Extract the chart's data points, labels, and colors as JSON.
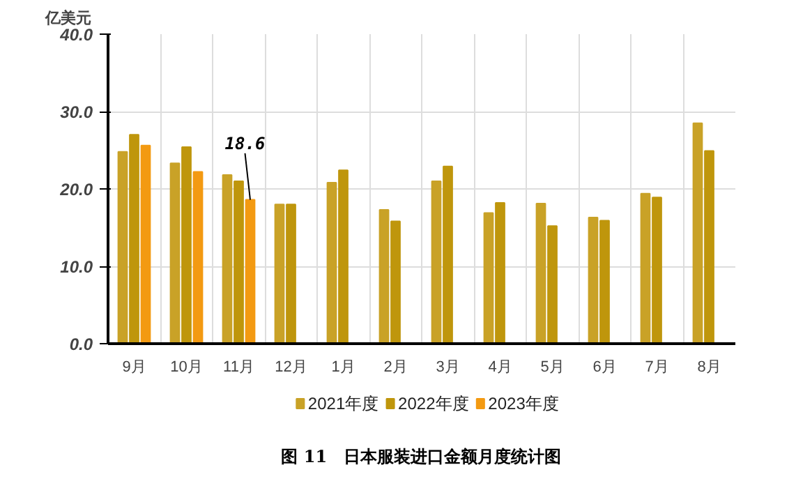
{
  "chart_data": {
    "type": "bar",
    "title": "图 11　日本服装进口金额月度统计图",
    "ylabel": "亿美元",
    "categories": [
      "9月",
      "10月",
      "11月",
      "12月",
      "1月",
      "2月",
      "3月",
      "4月",
      "5月",
      "6月",
      "7月",
      "8月"
    ],
    "series": [
      {
        "name": "2021年度",
        "color": "#c9a227",
        "values": [
          24.8,
          23.3,
          21.8,
          18.0,
          20.8,
          17.3,
          21.0,
          16.9,
          18.1,
          16.3,
          19.4,
          28.5
        ]
      },
      {
        "name": "2022年度",
        "color": "#bf960c",
        "values": [
          27.0,
          25.4,
          21.0,
          18.0,
          22.4,
          15.8,
          22.9,
          18.2,
          15.2,
          15.9,
          18.9,
          24.9
        ]
      },
      {
        "name": "2023年度",
        "color": "#f39a12",
        "values": [
          25.6,
          22.2,
          18.6,
          null,
          null,
          null,
          null,
          null,
          null,
          null,
          null,
          null
        ]
      }
    ],
    "ylim": [
      0,
      40
    ],
    "yticks": [
      {
        "value": 0,
        "label": "0.0"
      },
      {
        "value": 10,
        "label": "10.0"
      },
      {
        "value": 20,
        "label": "20.0"
      },
      {
        "value": 30,
        "label": "30.0"
      },
      {
        "value": 40,
        "label": "40.0"
      }
    ],
    "annotations": [
      {
        "text": "18.6",
        "x": "11月",
        "y": 18.6
      }
    ],
    "grid": true,
    "legend": "bottom"
  }
}
